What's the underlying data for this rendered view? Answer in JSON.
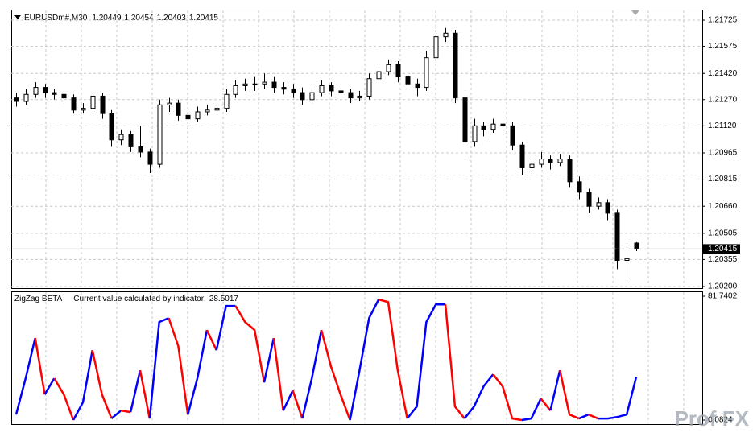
{
  "chart_data": [
    {
      "type": "candlestick",
      "symbol": "EURUSDm#,M30",
      "candles": [
        [
          1.2128,
          1.2131,
          1.2123,
          1.2126
        ],
        [
          1.2126,
          1.2133,
          1.2124,
          1.213
        ],
        [
          1.213,
          1.2137,
          1.2128,
          1.2134
        ],
        [
          1.2134,
          1.2136,
          1.2128,
          1.2131
        ],
        [
          1.2131,
          1.2133,
          1.2127,
          1.213
        ],
        [
          1.213,
          1.2132,
          1.2125,
          1.2128
        ],
        [
          1.2128,
          1.213,
          1.2119,
          1.2121
        ],
        [
          1.2121,
          1.2125,
          1.2119,
          1.2122
        ],
        [
          1.2122,
          1.2132,
          1.212,
          1.2129
        ],
        [
          1.2129,
          1.2131,
          1.2116,
          1.2119
        ],
        [
          1.2119,
          1.2121,
          1.21,
          1.2104
        ],
        [
          1.2104,
          1.211,
          1.2101,
          1.2107
        ],
        [
          1.2107,
          1.2109,
          1.2097,
          1.21
        ],
        [
          1.21,
          1.2112,
          1.2094,
          1.2097
        ],
        [
          1.2097,
          1.2099,
          1.2085,
          1.209
        ],
        [
          1.209,
          1.2127,
          1.2088,
          1.2124
        ],
        [
          1.2124,
          1.2128,
          1.212,
          1.2125
        ],
        [
          1.2125,
          1.2127,
          1.2115,
          1.2118
        ],
        [
          1.2118,
          1.212,
          1.2112,
          1.2116
        ],
        [
          1.2116,
          1.2123,
          1.2114,
          1.212
        ],
        [
          1.212,
          1.2124,
          1.2118,
          1.2121
        ],
        [
          1.2121,
          1.2125,
          1.2118,
          1.2122
        ],
        [
          1.2122,
          1.2133,
          1.212,
          1.213
        ],
        [
          1.213,
          1.2138,
          1.2128,
          1.2135
        ],
        [
          1.2135,
          1.2139,
          1.2132,
          1.2136
        ],
        [
          1.2136,
          1.214,
          1.2132,
          1.2136
        ],
        [
          1.2136,
          1.2142,
          1.2133,
          1.2137
        ],
        [
          1.2137,
          1.214,
          1.2131,
          1.2134
        ],
        [
          1.2134,
          1.2137,
          1.213,
          1.2133
        ],
        [
          1.2133,
          1.2136,
          1.2128,
          1.2131
        ],
        [
          1.2131,
          1.2134,
          1.2124,
          1.2127
        ],
        [
          1.2127,
          1.2134,
          1.2125,
          1.2131
        ],
        [
          1.2131,
          1.2138,
          1.2129,
          1.2135
        ],
        [
          1.2135,
          1.2137,
          1.2129,
          1.2132
        ],
        [
          1.2132,
          1.2134,
          1.2128,
          1.2131
        ],
        [
          1.2131,
          1.2133,
          1.2125,
          1.2128
        ],
        [
          1.2128,
          1.2132,
          1.2126,
          1.2129
        ],
        [
          1.2129,
          1.2142,
          1.2127,
          1.2139
        ],
        [
          1.2139,
          1.2146,
          1.2137,
          1.2143
        ],
        [
          1.2143,
          1.215,
          1.2141,
          1.2147
        ],
        [
          1.2147,
          1.2149,
          1.2137,
          1.214
        ],
        [
          1.214,
          1.2142,
          1.2133,
          1.2136
        ],
        [
          1.2136,
          1.2139,
          1.2129,
          1.2134
        ],
        [
          1.2134,
          1.2155,
          1.2132,
          1.2151
        ],
        [
          1.2151,
          1.2167,
          1.2149,
          1.2163
        ],
        [
          1.2163,
          1.2168,
          1.216,
          1.2165
        ],
        [
          1.2165,
          1.2167,
          1.2125,
          1.2128
        ],
        [
          1.2128,
          1.213,
          1.2095,
          1.2103
        ],
        [
          1.2103,
          1.2116,
          1.21,
          1.2112
        ],
        [
          1.2112,
          1.2114,
          1.2106,
          1.211
        ],
        [
          1.211,
          1.2116,
          1.2108,
          1.2113
        ],
        [
          1.2113,
          1.2117,
          1.2109,
          1.2112
        ],
        [
          1.2112,
          1.2114,
          1.2098,
          1.2101
        ],
        [
          1.2101,
          1.2103,
          1.2084,
          1.2088
        ],
        [
          1.2088,
          1.2093,
          1.2085,
          1.209
        ],
        [
          1.209,
          1.2097,
          1.2088,
          1.2093
        ],
        [
          1.2093,
          1.2095,
          1.2087,
          1.2091
        ],
        [
          1.2091,
          1.2096,
          1.2089,
          1.2093
        ],
        [
          1.2093,
          1.2095,
          1.2077,
          1.208
        ],
        [
          1.208,
          1.2083,
          1.207,
          1.2074
        ],
        [
          1.2074,
          1.2076,
          1.2062,
          1.2066
        ],
        [
          1.2066,
          1.2071,
          1.2064,
          1.2068
        ],
        [
          1.2068,
          1.207,
          1.2058,
          1.2062
        ],
        [
          1.2062,
          1.2064,
          1.203,
          1.2035
        ],
        [
          1.2035,
          1.2045,
          1.2023,
          1.2036
        ],
        [
          1.20449,
          1.20454,
          1.20403,
          1.20415
        ]
      ],
      "ylim": [
        1.20191,
        1.21785
      ],
      "yticks": [
        1.21725,
        1.21575,
        {
          "value": 1.2142,
          "label": "1.21420"
        },
        {
          "value": 1.2127,
          "label": "1.21270"
        },
        {
          "value": 1.2112,
          "label": "1.21120"
        },
        1.20965,
        1.20815,
        {
          "value": 1.2066,
          "label": "1.20660"
        },
        1.20505,
        1.20355,
        {
          "value": 1.202,
          "label": "1.20200"
        }
      ],
      "grid": true,
      "up_color": "#ffffff",
      "down_color": "#000000"
    },
    {
      "type": "line",
      "title": "ZigZag BETA",
      "label": "Current value calculated by indicator:",
      "values": [
        3.7,
        27.6,
        54.1,
        17.0,
        27.6,
        17.0,
        0.1,
        11.7,
        46.1,
        17.0,
        1.1,
        6.4,
        5.3,
        32.9,
        1.1,
        64.7,
        67.3,
        48.8,
        3.7,
        27.6,
        59.4,
        46.1,
        75.3,
        75.3,
        64.7,
        59.4,
        24.9,
        54.1,
        6.4,
        19.6,
        1.1,
        27.6,
        59.4,
        35.5,
        17.0,
        0.1,
        32.9,
        67.3,
        79.5,
        77.9,
        32.9,
        1.1,
        9.0,
        64.7,
        76.3,
        76.3,
        9.0,
        1.1,
        9.0,
        22.3,
        30.2,
        22.3,
        1.1,
        0.1,
        1.1,
        14.3,
        6.4,
        32.9,
        3.7,
        1.1,
        3.7,
        1.1,
        1.1,
        2.1,
        3.7,
        28.5017
      ],
      "ylim": [
        0.0824,
        81.7402
      ],
      "yticks": [
        81.7402,
        0.0824
      ],
      "grid": true,
      "rise_color": "#0000ff",
      "fall_color": "#ff0000"
    }
  ],
  "watermark": "Prof FX"
}
